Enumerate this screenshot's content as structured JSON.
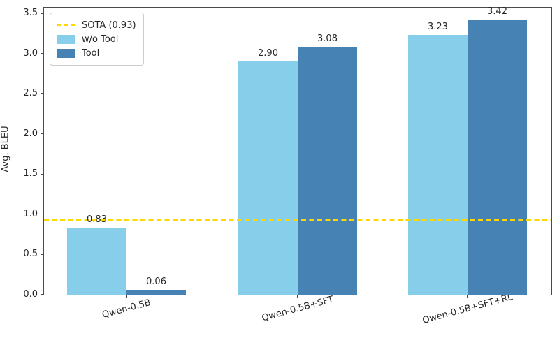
{
  "chart_data": {
    "type": "bar",
    "title": "",
    "categories": [
      "Qwen-0.5B",
      "Qwen-0.5B+SFT",
      "Qwen-0.5B+SFT+RL"
    ],
    "series": [
      {
        "name": "w/o Tool",
        "color": "#87CEEB",
        "values": [
          0.83,
          2.9,
          3.23
        ],
        "labels": [
          "0.83",
          "2.90",
          "3.23"
        ]
      },
      {
        "name": "Tool",
        "color": "#4682B4",
        "values": [
          0.06,
          3.08,
          3.42
        ],
        "labels": [
          "0.06",
          "3.08",
          "3.42"
        ]
      }
    ],
    "reference_line": {
      "label": "SOTA (0.93)",
      "value": 0.93,
      "color": "#FFD700",
      "style": "dashed"
    },
    "ylabel": "Avg. BLEU",
    "xlabel": "",
    "ylim": [
      0,
      3.56
    ],
    "yticks": [
      0,
      0.5,
      1,
      1.5,
      2,
      2.5,
      3,
      3.5
    ],
    "ytick_labels": [
      "0.0",
      "0.5",
      "1.0",
      "1.5",
      "2.0",
      "2.5",
      "3.0",
      "3.5"
    ],
    "legend": {
      "position": "upper-left",
      "entries": [
        "SOTA (0.93)",
        "w/o Tool",
        "Tool"
      ]
    },
    "grid": false,
    "axis_color": "#4a4a4a",
    "text_color": "#262626",
    "background_color": "#ffffff"
  }
}
